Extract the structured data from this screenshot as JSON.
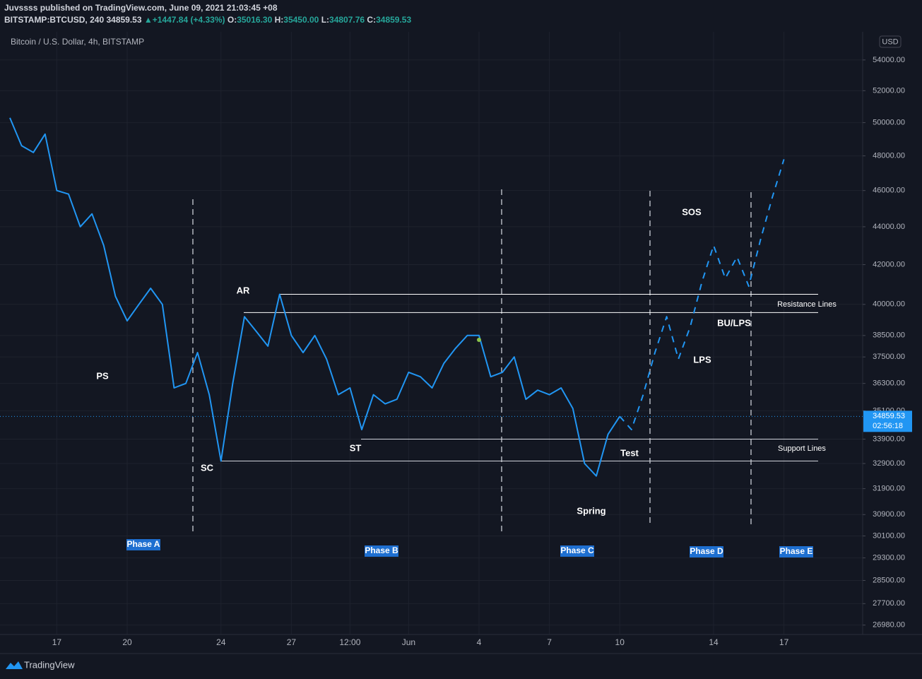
{
  "header": {
    "publisher": "Juvssss published on TradingView.com, June 09, 2021 21:03:45 +08",
    "symbol": "BITSTAMP:BTCUSD, 240",
    "last": "34859.53",
    "arrow": "▲",
    "change": "+1447.84 (+4.33%)",
    "o_label": "O:",
    "o": "35016.30",
    "h_label": "H:",
    "h": "35450.00",
    "l_label": "L:",
    "l": "34807.76",
    "c_label": "C:",
    "c": "34859.53"
  },
  "footer": {
    "brand": "TradingView"
  },
  "chart_data": {
    "type": "line",
    "title": "Bitcoin / U.S. Dollar, 4h, BITSTAMP",
    "currency": "USD",
    "log_scale": true,
    "grid": true,
    "categories": [
      null,
      null,
      null,
      null,
      "17",
      null,
      null,
      null,
      null,
      null,
      "20",
      null,
      null,
      null,
      null,
      null,
      null,
      null,
      "24",
      null,
      null,
      null,
      null,
      null,
      "27",
      null,
      null,
      null,
      null,
      "12:00",
      null,
      null,
      null,
      null,
      "Jun",
      null,
      null,
      null,
      null,
      null,
      "4",
      null,
      null,
      null,
      null,
      null,
      "7",
      null,
      null,
      null,
      null,
      null,
      "10",
      null,
      null,
      null,
      null,
      null,
      null,
      null,
      "14",
      null,
      null,
      null,
      null,
      null,
      "17",
      null,
      null,
      null,
      null,
      null,
      null
    ],
    "series": [
      {
        "color": "#2196f3",
        "style": "solid",
        "values": [
          50300,
          48600,
          48200,
          49300,
          46000,
          45800,
          44000,
          44700,
          43000,
          40400,
          39200,
          40000,
          40800,
          40000,
          36100,
          36300,
          37700,
          35800,
          33000,
          36300,
          39400,
          38700,
          38000,
          40500,
          38500,
          37700,
          38500,
          37400,
          35800,
          36100,
          34300,
          35800,
          35400,
          35600,
          36800,
          36600,
          36100,
          37200,
          37900,
          38500,
          38500,
          36600,
          36800,
          37500,
          35600,
          36000,
          35800,
          36100,
          35200,
          32900,
          32400,
          34100,
          34859.53,
          null,
          null,
          null,
          null,
          null,
          null,
          null,
          null,
          null,
          null,
          null,
          null,
          null,
          null,
          null,
          null,
          null,
          null,
          null,
          null
        ]
      },
      {
        "color": "#2196f3",
        "style": "dashed",
        "values": [
          null,
          null,
          null,
          null,
          null,
          null,
          null,
          null,
          null,
          null,
          null,
          null,
          null,
          null,
          null,
          null,
          null,
          null,
          null,
          null,
          null,
          null,
          null,
          null,
          null,
          null,
          null,
          null,
          null,
          null,
          null,
          null,
          null,
          null,
          null,
          null,
          null,
          null,
          null,
          null,
          null,
          null,
          null,
          null,
          null,
          null,
          null,
          null,
          null,
          null,
          null,
          null,
          34859.53,
          34300,
          35800,
          37700,
          39400,
          37400,
          38900,
          41100,
          43000,
          41300,
          42400,
          40900,
          43300,
          45600,
          47800,
          null,
          null,
          null,
          null,
          null,
          null
        ]
      }
    ],
    "current_price": {
      "value": 34859.53,
      "label": "34859.53",
      "countdown": "02:56:18"
    },
    "levels": [
      40500,
      39600,
      33900,
      33000
    ],
    "level_labels": [
      "Resistance Lines",
      "Support Lines"
    ],
    "annotations": [
      "PS",
      "SC",
      "AR",
      "ST",
      "Spring",
      "Test",
      "SOS",
      "LPS",
      "BU/LPS"
    ],
    "phases": [
      "Phase A",
      "Phase B",
      "Phase C",
      "Phase D",
      "Phase E"
    ],
    "ylim": [
      26670,
      55900
    ],
    "yticks": [
      {
        "value": 54000,
        "label": "54000.00"
      },
      {
        "value": 52000,
        "label": "52000.00"
      },
      {
        "value": 50000,
        "label": "50000.00"
      },
      {
        "value": 48000,
        "label": "48000.00"
      },
      {
        "value": 46000,
        "label": "46000.00"
      },
      {
        "value": 44000,
        "label": "44000.00"
      },
      {
        "value": 42000,
        "label": "42000.00"
      },
      {
        "value": 40000,
        "label": "40000.00"
      },
      {
        "value": 38500,
        "label": "38500.00"
      },
      {
        "value": 37500,
        "label": "37500.00"
      },
      {
        "value": 36300,
        "label": "36300.00"
      },
      {
        "value": 35100,
        "label": "35100.00"
      },
      {
        "value": 33900,
        "label": "33900.00"
      },
      {
        "value": 32900,
        "label": "32900.00"
      },
      {
        "value": 31900,
        "label": "31900.00"
      },
      {
        "value": 30900,
        "label": "30900.00"
      },
      {
        "value": 30100,
        "label": "30100.00"
      },
      {
        "value": 29300,
        "label": "29300.00"
      },
      {
        "value": 28500,
        "label": "28500.00"
      },
      {
        "value": 27700,
        "label": "27700.00"
      },
      {
        "value": 26980,
        "label": "26980.00"
      }
    ]
  }
}
